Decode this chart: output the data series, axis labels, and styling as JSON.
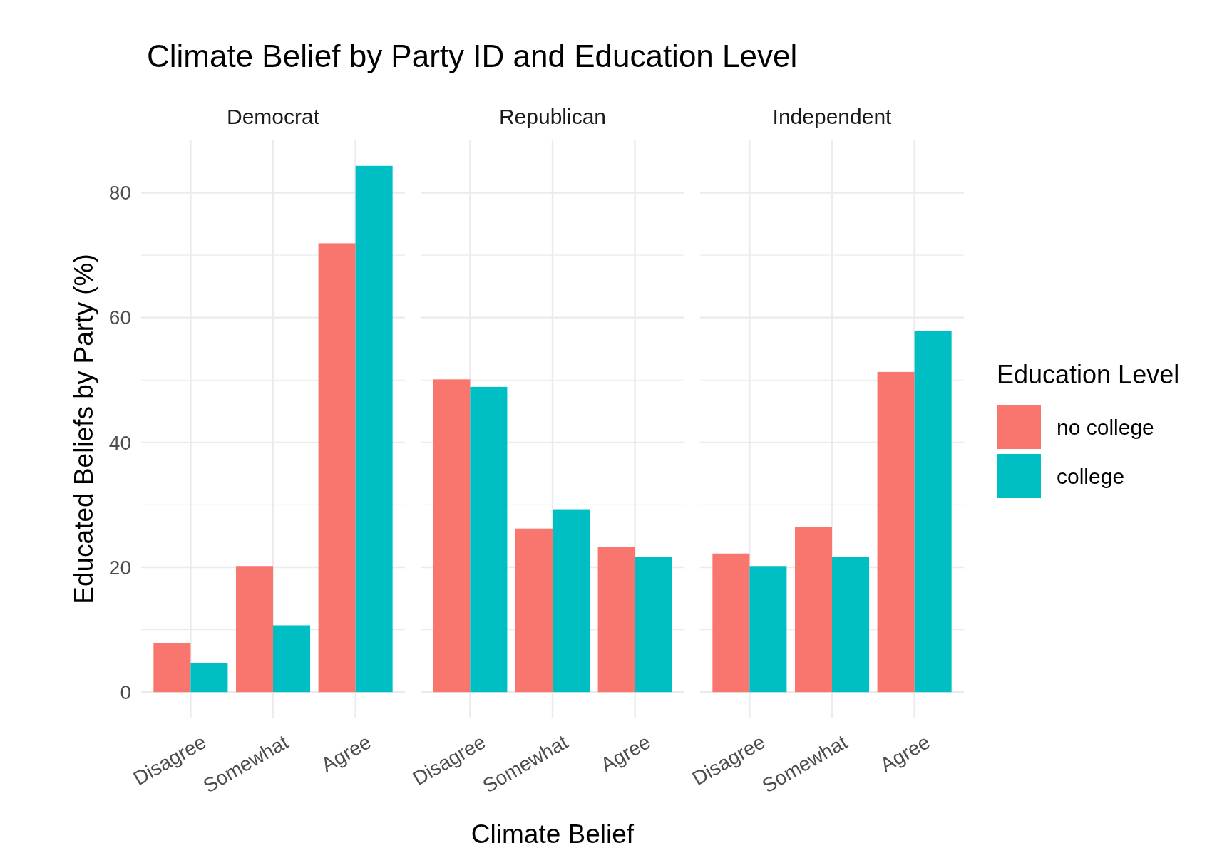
{
  "chart_data": [
    {
      "type": "bar",
      "title": "Climate Belief by Party ID and Education Level",
      "subtitle": "Democrat",
      "ylabel": "Educated Beliefs by Party (%)",
      "categories": [
        "Disagree",
        "Somewhat",
        "Agree"
      ],
      "series": [
        {
          "color": "#f8766d",
          "values": [
            7.9,
            20.2,
            71.9
          ]
        },
        {
          "color": "#00bfc4",
          "values": [
            4.6,
            10.7,
            84.3
          ]
        }
      ],
      "ylim": [
        -4.2,
        88.5
      ],
      "yticks": [
        0,
        {
          "value": 10,
          "label": null
        },
        20,
        {
          "value": 30,
          "label": null
        },
        40,
        {
          "value": 50,
          "label": null
        },
        60,
        {
          "value": 70,
          "label": null
        },
        80
      ],
      "grid": true,
      "tick_labels": true
    },
    {
      "type": "bar",
      "subtitle": "Republican",
      "xlabel": "Climate Belief",
      "categories": [
        "Disagree",
        "Somewhat",
        "Agree"
      ],
      "series": [
        {
          "color": "#f8766d",
          "values": [
            50.1,
            26.2,
            23.3
          ]
        },
        {
          "color": "#00bfc4",
          "values": [
            48.9,
            29.3,
            21.6
          ]
        }
      ],
      "ylim": [
        -4.2,
        88.5
      ],
      "yticks": [
        0,
        {
          "value": 10,
          "label": null
        },
        20,
        {
          "value": 30,
          "label": null
        },
        40,
        {
          "value": 50,
          "label": null
        },
        60,
        {
          "value": 70,
          "label": null
        },
        80
      ],
      "grid": true,
      "tick_labels": "x"
    },
    {
      "type": "bar",
      "subtitle": "Independent",
      "categories": [
        "Disagree",
        "Somewhat",
        "Agree"
      ],
      "legend_title": "Education Level",
      "legend": "right",
      "series": [
        {
          "name": "no college",
          "color": "#f8766d",
          "values": [
            22.2,
            26.5,
            51.3
          ]
        },
        {
          "name": "college",
          "color": "#00bfc4",
          "values": [
            20.2,
            21.7,
            57.9
          ]
        }
      ],
      "ylim": [
        -4.2,
        88.5
      ],
      "yticks": [
        0,
        {
          "value": 10,
          "label": null
        },
        20,
        {
          "value": 30,
          "label": null
        },
        40,
        {
          "value": 50,
          "label": null
        },
        60,
        {
          "value": 70,
          "label": null
        },
        80
      ],
      "grid": true,
      "tick_labels": "x"
    }
  ]
}
